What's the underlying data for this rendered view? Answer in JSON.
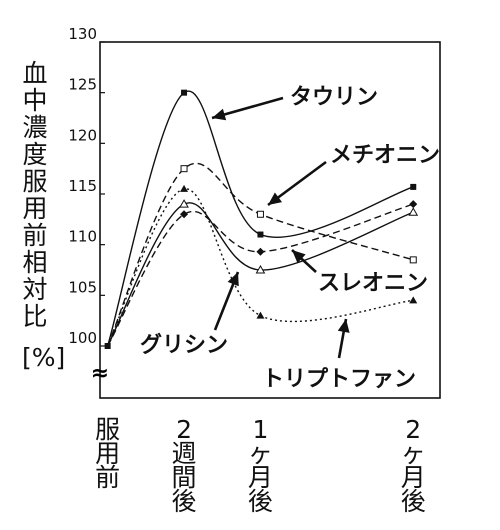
{
  "chart_data": {
    "type": "line",
    "title": "",
    "ylabel_chars": [
      "血",
      "中",
      "濃",
      "度",
      "服",
      "用",
      "前",
      "相",
      "対",
      "比"
    ],
    "ylabel_unit": "[%]",
    "categories": [
      {
        "lines": [
          "服",
          "用",
          "前"
        ]
      },
      {
        "lines": [
          "2",
          "週",
          "間",
          "後"
        ]
      },
      {
        "lines": [
          "1",
          "ヶ",
          "月",
          "後"
        ]
      },
      {
        "lines": [
          "2",
          "ヶ",
          "月",
          "後"
        ]
      }
    ],
    "x": [
      0,
      2,
      4,
      8
    ],
    "xlim": [
      -0.2,
      8.7
    ],
    "ylim": [
      100,
      130
    ],
    "yticks": [
      "100",
      "105",
      "110",
      "115",
      "120",
      "125",
      "130"
    ],
    "axis_break": "≈",
    "grid": false,
    "series": [
      {
        "name": "タウリン",
        "values": [
          100,
          125,
          111,
          115.7
        ],
        "marker": "square-filled",
        "line": "solid",
        "peak_x": 2.6
      },
      {
        "name": "メチオニン",
        "values": [
          100,
          117.5,
          113,
          108.5
        ],
        "marker": "square-open",
        "line": "dashed",
        "peak_x": 2.6
      },
      {
        "name": "スレオニン",
        "values": [
          100,
          113,
          109.3,
          114
        ],
        "marker": "diamond-filled",
        "line": "dashed",
        "peak_x": 2.3
      },
      {
        "name": "グリシン",
        "values": [
          100,
          114,
          107.5,
          113.2
        ],
        "marker": "triangle-open",
        "line": "solid",
        "peak_x": 2.3
      },
      {
        "name": "トリプトファン",
        "values": [
          100,
          115.5,
          103,
          104.5
        ],
        "marker": "triangle-filled",
        "line": "dotted",
        "peak_x": 2.3
      }
    ]
  }
}
